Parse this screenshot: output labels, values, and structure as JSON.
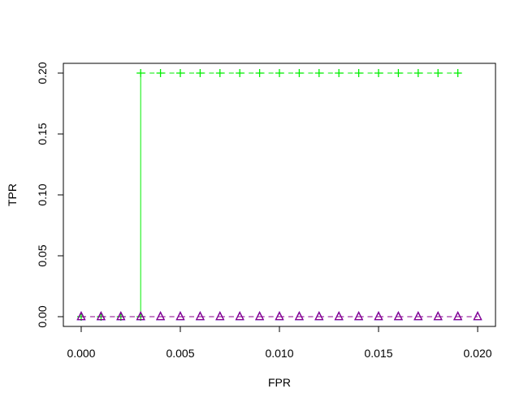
{
  "chart_data": {
    "type": "line",
    "xlabel": "FPR",
    "ylabel": "TPR",
    "xlim": [
      -0.0009,
      0.0209
    ],
    "ylim": [
      -0.008,
      0.208
    ],
    "x_ticks": [
      0.0,
      0.005,
      0.01,
      0.015,
      0.02
    ],
    "x_tick_labels": [
      "0.000",
      "0.005",
      "0.010",
      "0.015",
      "0.020"
    ],
    "y_ticks": [
      0.0,
      0.05,
      0.1,
      0.15,
      0.2
    ],
    "y_tick_labels": [
      "0.00",
      "0.05",
      "0.10",
      "0.15",
      "0.20"
    ],
    "grid": false,
    "series": [
      {
        "color": "#00ee00",
        "marker": "plus",
        "line_style": "dashed",
        "x": [
          0.0,
          0.001,
          0.002,
          0.003,
          0.003,
          0.004,
          0.005,
          0.006,
          0.007,
          0.008,
          0.009,
          0.01,
          0.011,
          0.012,
          0.013,
          0.014,
          0.015,
          0.016,
          0.017,
          0.018,
          0.019
        ],
        "y": [
          0.0,
          0.0,
          0.0,
          0.0,
          0.2,
          0.2,
          0.2,
          0.2,
          0.2,
          0.2,
          0.2,
          0.2,
          0.2,
          0.2,
          0.2,
          0.2,
          0.2,
          0.2,
          0.2,
          0.2,
          0.2
        ]
      },
      {
        "color": "#0000ff",
        "marker": "triangle",
        "line_style": "dashed",
        "x": [
          0.0,
          0.001,
          0.002,
          0.003,
          0.004,
          0.005,
          0.006,
          0.007,
          0.008,
          0.009,
          0.01,
          0.011,
          0.012,
          0.013,
          0.014,
          0.015,
          0.016,
          0.017,
          0.018,
          0.019,
          0.02
        ],
        "y": [
          0.0,
          0.0,
          0.0,
          0.0,
          0.0,
          0.0,
          0.0,
          0.0,
          0.0,
          0.0,
          0.0,
          0.0,
          0.0,
          0.0,
          0.0,
          0.0,
          0.0,
          0.0,
          0.0,
          0.0,
          0.0
        ]
      },
      {
        "color": "#8b008b",
        "marker": "triangle",
        "line_style": "dashed",
        "x": [
          0.0,
          0.001,
          0.002,
          0.003,
          0.004,
          0.005,
          0.006,
          0.007,
          0.008,
          0.009,
          0.01,
          0.011,
          0.012,
          0.013,
          0.014,
          0.015,
          0.016,
          0.017,
          0.018,
          0.019,
          0.02
        ],
        "y": [
          0.0,
          0.0,
          0.0,
          0.0,
          0.0,
          0.0,
          0.0,
          0.0,
          0.0,
          0.0,
          0.0,
          0.0,
          0.0,
          0.0,
          0.0,
          0.0,
          0.0,
          0.0,
          0.0,
          0.0,
          0.0
        ]
      }
    ]
  }
}
